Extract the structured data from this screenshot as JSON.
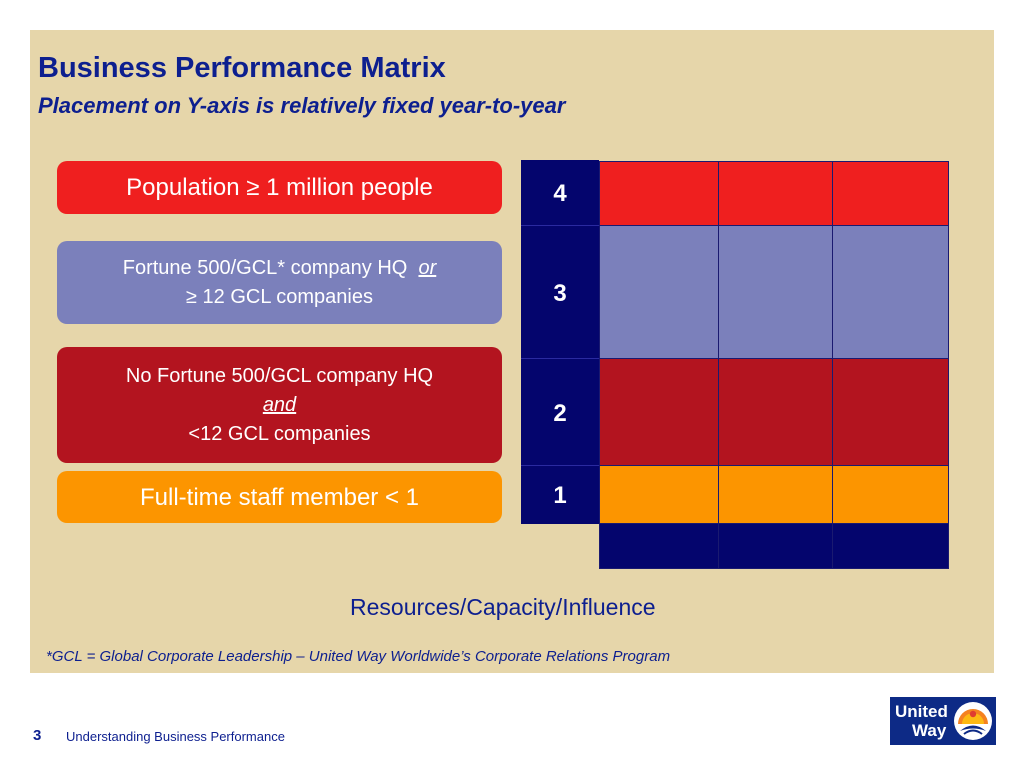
{
  "slide": {
    "title": "Business Performance Matrix",
    "subtitle": "Placement on Y-axis is relatively fixed year-to-year"
  },
  "criteria": [
    {
      "level": "4",
      "line1": "Population ≥ 1 million people",
      "color": "#ef1f1f"
    },
    {
      "level": "3",
      "line1": "Fortune 500/GCL* company HQ",
      "connector": "or",
      "line2": "≥ 12 GCL companies",
      "color": "#7b80bb"
    },
    {
      "level": "2",
      "line1": "No Fortune 500/GCL company  HQ",
      "connector": "and",
      "line2": "<12 GCL companies",
      "color": "#b3141f"
    },
    {
      "level": "1",
      "line1": "Full-time staff member < 1",
      "color": "#fc9500"
    }
  ],
  "matrix": {
    "y_labels": [
      "4",
      "3",
      "2",
      "1"
    ],
    "x_axis_label": "Resources/Capacity/Influence",
    "axis_color": "#04056d"
  },
  "footnote": "*GCL = Global Corporate Leadership – United Way Worldwide’s Corporate Relations Program",
  "footer": {
    "page_number": "3",
    "doc_title": "Understanding Business Performance",
    "logo_line1": "United",
    "logo_line2": "Way"
  }
}
